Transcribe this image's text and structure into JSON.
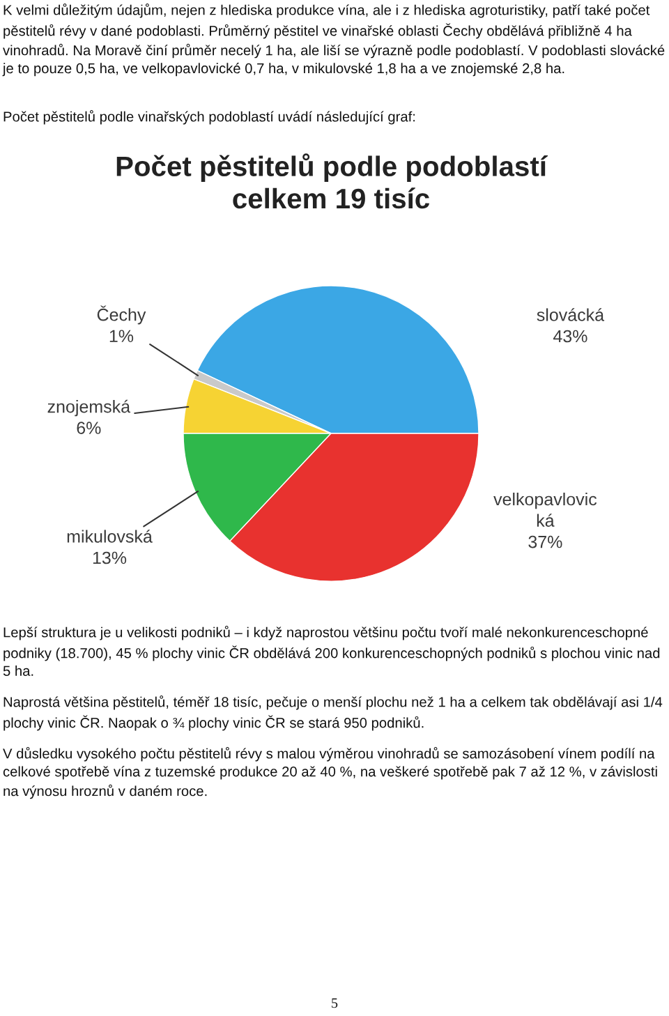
{
  "chart_data": {
    "type": "pie",
    "title": "Počet pěstitelů podle podoblastí\ncelkem 19 tisíc",
    "categories": [
      "slovácká",
      "Čechy",
      "znojemská",
      "mikulovská",
      "velkopavlovic\nká"
    ],
    "values": [
      43,
      1,
      6,
      13,
      37
    ],
    "value_labels": [
      "43%",
      "1%",
      "6%",
      "13%",
      "37%"
    ],
    "colors": [
      "#3ba7e5",
      "#c9c9c9",
      "#f6d333",
      "#2fb84b",
      "#e8322f"
    ],
    "annotations": [
      "K velmi důležitým údajům, nejen z hlediska produkce vína, ale i z hlediska agroturistiky, patří také počet pěstitelů révy v dané podoblasti. Průměrný pěstitel ve vinařské oblasti Čechy obdělává přibližně 4 ha vinohradů. Na Moravě činí průměr necelý 1 ha, ale liší se výrazně podle podoblastí. V podoblasti slovácké je to pouze 0,5 ha, ve velkopavlovické 0,7 ha, v mikulovské 1,8 ha a ve znojemské 2,8 ha.",
      "Počet pěstitelů podle vinařských podoblastí uvádí následující graf:",
      "Lepší struktura je u velikosti podniků – i když naprostou většinu počtu tvoří malé nekonkurenceschopné podniky (18.700), 45 % plochy vinic ČR obdělává 200 konkurenceschopných podniků s plochou vinic nad 5 ha.",
      "Naprostá většina pěstitelů, téměř 18 tisíc, pečuje o menší plochu než 1 ha a celkem tak obdělávají asi 1/4 plochy vinic ČR. Naopak o ¾ plochy vinic ČR se stará 950 podniků.",
      "V důsledku vysokého počtu pěstitelů révy s malou výměrou vinohradů se samozásobení vínem podílí na celkové spotřebě vína z tuzemské produkce 20 až 40 %, na veškeré spotřebě pak 7 až 12 %, v závislosti na výnosu hroznů v daném roce.",
      "5"
    ]
  }
}
